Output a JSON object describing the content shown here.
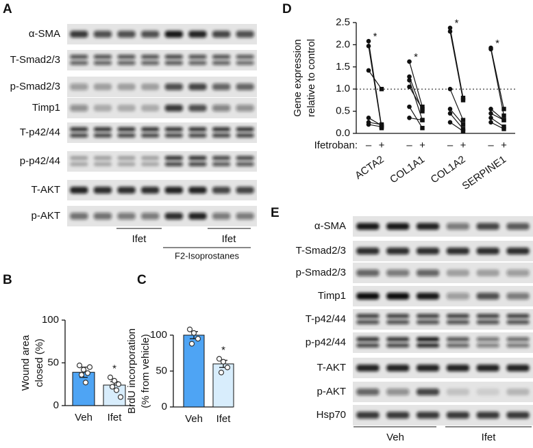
{
  "panels": {
    "A": {
      "label": "A",
      "rows": [
        "α-SMA",
        "T-Smad2/3",
        "p-Smad2/3",
        "Timp1",
        "T-p42/44",
        "p-p42/44",
        "T-AKT",
        "p-AKT"
      ],
      "treatment_1": "Ifet",
      "treatment_2": "Ifet",
      "treatment_3": "F2-Isoprostanes"
    },
    "E": {
      "label": "E",
      "rows": [
        "α-SMA",
        "T-Smad2/3",
        "p-Smad2/3",
        "Timp1",
        "T-p42/44",
        "p-p42/44",
        "T-AKT",
        "p-AKT",
        "Hsp70"
      ],
      "group_1": "Veh",
      "group_2": "Ifet"
    }
  },
  "chart_data": [
    {
      "type": "bar",
      "panel": "B",
      "ylabel": [
        "Wound area",
        "closed (%)"
      ],
      "categories": [
        "Veh",
        "Ifet"
      ],
      "values": [
        39,
        24
      ],
      "errors": [
        6,
        4
      ],
      "points": [
        [
          47,
          42,
          38,
          36,
          27,
          45
        ],
        [
          33,
          29,
          25,
          22,
          18,
          10
        ]
      ],
      "colors": [
        "#4ea4f4",
        "#d8edfc"
      ],
      "ylim": [
        0,
        100
      ],
      "yticks": [
        0,
        50,
        100
      ],
      "annotations": [
        {
          "text": "*",
          "category": 1
        }
      ]
    },
    {
      "type": "bar",
      "panel": "C",
      "ylabel": [
        "BrdU incorporation",
        "(% from vehicle)"
      ],
      "categories": [
        "Veh",
        "Ifet"
      ],
      "values": [
        100,
        60
      ],
      "errors": [
        5,
        5
      ],
      "points": [
        [
          108,
          103,
          95,
          88
        ],
        [
          67,
          63,
          55,
          48
        ]
      ],
      "colors": [
        "#4ea4f4",
        "#d8edfc"
      ],
      "ylim": [
        0,
        100
      ],
      "yticks": [
        0,
        50,
        100
      ],
      "annotations": [
        {
          "text": "*",
          "category": 1
        }
      ]
    },
    {
      "type": "paired",
      "panel": "D",
      "ylabel": [
        "Gene expression",
        "relative to control"
      ],
      "x_title": "Ifetroban:",
      "conditions": [
        "–",
        "+"
      ],
      "groups": [
        {
          "name": "ACTA2",
          "pre": [
            2.08,
            1.97,
            1.42,
            0.35,
            0.25,
            0.2
          ],
          "post": [
            0.15,
            0.12,
            1.0,
            0.18,
            0.2,
            0.15
          ],
          "annotation": "*"
        },
        {
          "name": "COL1A1",
          "pre": [
            1.62,
            1.28,
            1.2,
            1.05,
            0.6,
            0.35
          ],
          "post": [
            0.6,
            0.5,
            0.3,
            0.55,
            0.12,
            0.3
          ],
          "annotation": "*"
        },
        {
          "name": "COL1A2",
          "pre": [
            2.38,
            2.3,
            1.0,
            0.55,
            0.45,
            0.25
          ],
          "post": [
            0.8,
            0.75,
            0.3,
            0.2,
            0.1,
            0.05
          ],
          "annotation": "*"
        },
        {
          "name": "SERPINE1",
          "pre": [
            1.93,
            1.9,
            0.55,
            0.45,
            0.35,
            0.25
          ],
          "post": [
            0.55,
            0.4,
            0.3,
            0.3,
            0.15,
            0.1
          ],
          "annotation": "*"
        }
      ],
      "reference_line": 1.0,
      "ylim": [
        0,
        2.5
      ],
      "yticks": [
        0,
        0.5,
        1.0,
        1.5,
        2.0,
        2.5
      ]
    }
  ]
}
